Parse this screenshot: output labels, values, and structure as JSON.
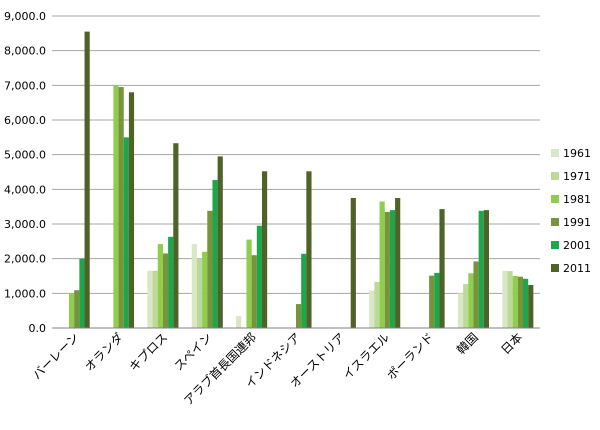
{
  "chart_data": {
    "type": "bar",
    "title": "",
    "xlabel": "",
    "ylabel": "",
    "ylim": [
      0,
      9000
    ],
    "yticks": [
      "0.0",
      "1,000.0",
      "2,000.0",
      "3,000.0",
      "4,000.0",
      "5,000.0",
      "6,000.0",
      "7,000.0",
      "8,000.0",
      "9,000.0"
    ],
    "grid": true,
    "legend_position": "right",
    "categories": [
      "バーレーン",
      "オランダ",
      "キプロス",
      "スペイン",
      "アラブ首長国連邦",
      "インドネシア",
      "オーストリア",
      "イスラエル",
      "ポーランド",
      "韓国",
      "日本"
    ],
    "series": [
      {
        "name": "1961",
        "color": "#d8e8c4",
        "values": [
          null,
          null,
          1650,
          2420,
          350,
          null,
          null,
          1080,
          null,
          1000,
          1650
        ]
      },
      {
        "name": "1971",
        "color": "#bcd99a",
        "values": [
          null,
          null,
          1650,
          2000,
          null,
          null,
          null,
          1330,
          null,
          1270,
          1640
        ]
      },
      {
        "name": "1981",
        "color": "#8fce4c",
        "values": [
          1000,
          7000,
          2420,
          2200,
          2550,
          null,
          null,
          3650,
          null,
          1580,
          1500
        ]
      },
      {
        "name": "1991",
        "color": "#77933c",
        "values": [
          1090,
          6950,
          2150,
          3380,
          2100,
          690,
          null,
          3350,
          1510,
          1920,
          1480
        ]
      },
      {
        "name": "2001",
        "color": "#1ea64b",
        "values": [
          2000,
          5500,
          2630,
          4270,
          2950,
          2140,
          null,
          3400,
          1590,
          3380,
          1420
        ]
      },
      {
        "name": "2011",
        "color": "#4f6228",
        "values": [
          8550,
          6800,
          5330,
          4950,
          4520,
          4520,
          3750,
          3750,
          3430,
          3400,
          1240
        ]
      }
    ]
  }
}
